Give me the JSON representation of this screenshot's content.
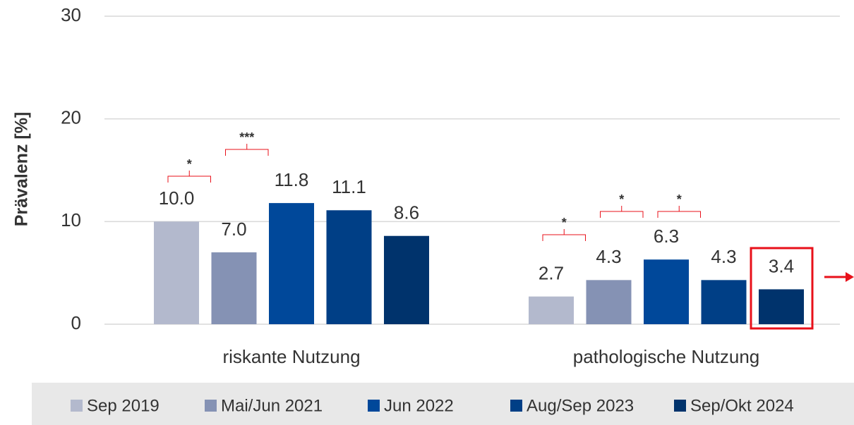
{
  "chart_data": {
    "type": "bar",
    "y_label": "Prävalenz [%]",
    "categories": [
      "riskante Nutzung",
      "pathologische Nutzung"
    ],
    "series": [
      {
        "name": "Sep 2019",
        "color": "#b3b9cd",
        "values": [
          10.0,
          2.7
        ],
        "value_labels": [
          "10.0",
          "2.7"
        ]
      },
      {
        "name": "Mai/Jun 2021",
        "color": "#8592b4",
        "values": [
          7.0,
          4.3
        ],
        "value_labels": [
          "7.0",
          "4.3"
        ]
      },
      {
        "name": "Jun 2022",
        "color": "#00489a",
        "values": [
          11.8,
          6.3
        ],
        "value_labels": [
          "11.8",
          "6.3"
        ]
      },
      {
        "name": "Aug/Sep 2023",
        "color": "#003f86",
        "values": [
          11.1,
          4.3
        ],
        "value_labels": [
          "11.1",
          "4.3"
        ]
      },
      {
        "name": "Sep/Okt 2024",
        "color": "#00336c",
        "values": [
          8.6,
          3.4
        ],
        "value_labels": [
          "8.6",
          "3.4"
        ]
      }
    ],
    "annotations": [
      "*",
      "***",
      "*",
      "*",
      "*"
    ],
    "ylim": [
      0,
      30
    ],
    "yticks": [
      0,
      10,
      20,
      30
    ],
    "grid": true
  }
}
